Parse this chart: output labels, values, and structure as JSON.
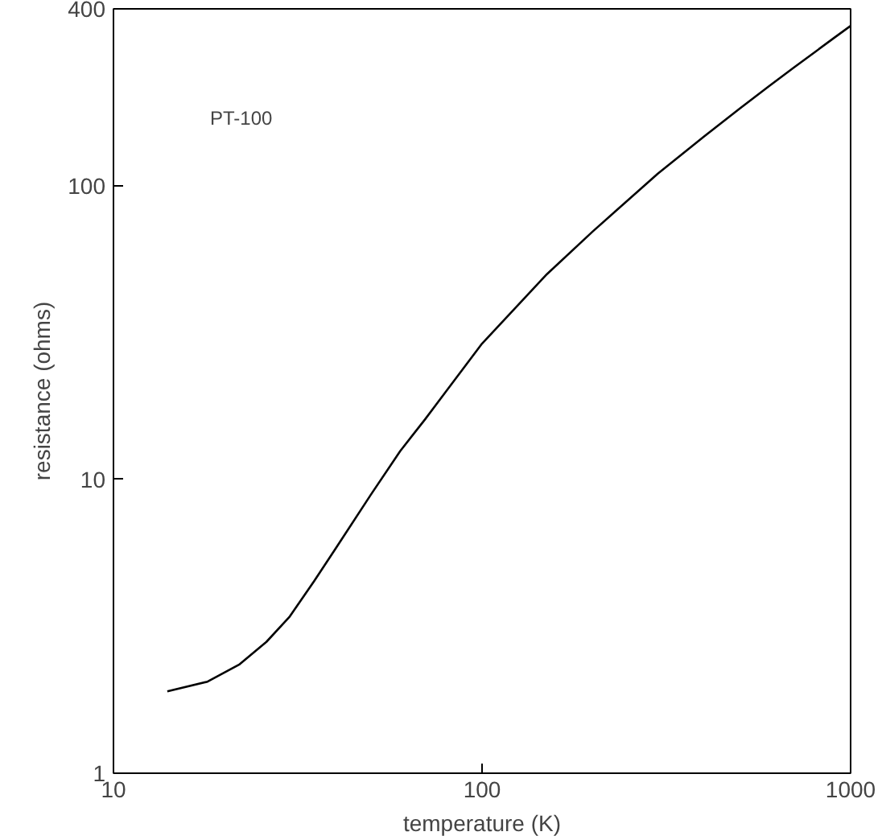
{
  "chart_data": {
    "type": "line",
    "xlabel": "temperature (K)",
    "ylabel": "resistance (ohms)",
    "log": "xy",
    "grid": false,
    "annotations": [
      "PT-100"
    ],
    "x": [
      14,
      18,
      22,
      26,
      30,
      35,
      40,
      50,
      60,
      70,
      80,
      100,
      150,
      200,
      300,
      400,
      500,
      600,
      700,
      800,
      900,
      1000
    ],
    "series": [
      {
        "color": "#000000",
        "values": [
          1.9,
          2.05,
          2.35,
          2.8,
          3.4,
          4.5,
          5.8,
          8.9,
          12.5,
          16,
          20,
          29,
          50,
          70,
          110,
          147,
          183,
          218,
          252,
          285,
          318,
          350
        ]
      }
    ],
    "xlim": [
      10,
      1000
    ],
    "ylim": [
      1,
      400
    ],
    "xticks": [
      10,
      100,
      1000
    ],
    "yticks": [
      1,
      10,
      100,
      400
    ]
  }
}
